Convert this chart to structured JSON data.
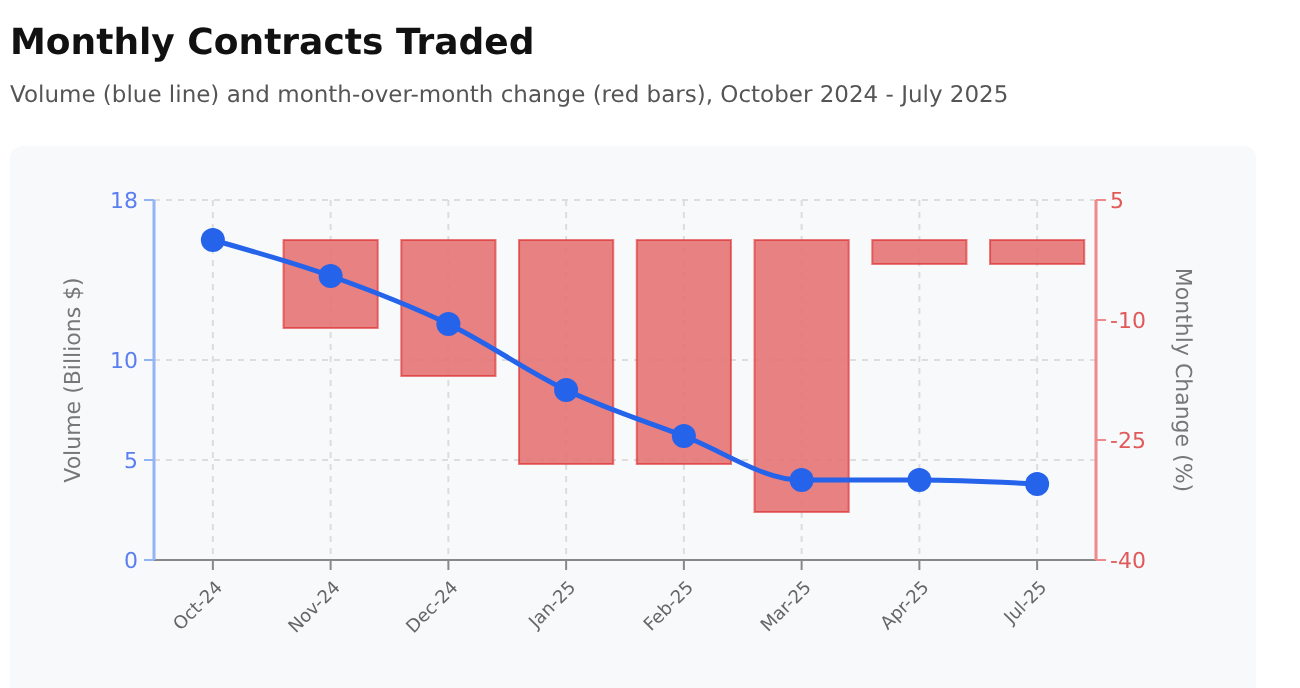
{
  "chart_data": {
    "type": "bar",
    "title": "Monthly Contracts Traded",
    "subtitle": "Volume (blue line) and month-over-month change (red bars), October 2024 - July 2025",
    "ylabel": "Volume (Billions $)",
    "y2label": "Monthly Change (%)",
    "categories": [
      "Oct-24",
      "Nov-24",
      "Dec-24",
      "Jan-25",
      "Feb-25",
      "Mar-25",
      "Apr-25",
      "Jul-25"
    ],
    "series": [
      {
        "axis": "y2",
        "color": "#e57373",
        "values": [
          null,
          -11,
          -17,
          -28,
          -28,
          -34,
          -3,
          -3
        ]
      },
      {
        "type": "line",
        "axis": "y",
        "color": "#2563eb",
        "values": [
          16,
          14.2,
          11.8,
          8.5,
          6.2,
          4,
          4,
          3.8
        ]
      }
    ],
    "ylim": [
      0,
      18
    ],
    "yticks": [
      0,
      5,
      10,
      18
    ],
    "y2lim": [
      -40,
      5
    ],
    "y2ticks": [
      -40,
      -25,
      -10,
      5
    ],
    "grid": true,
    "marker": "circle",
    "line_style": "solid"
  }
}
